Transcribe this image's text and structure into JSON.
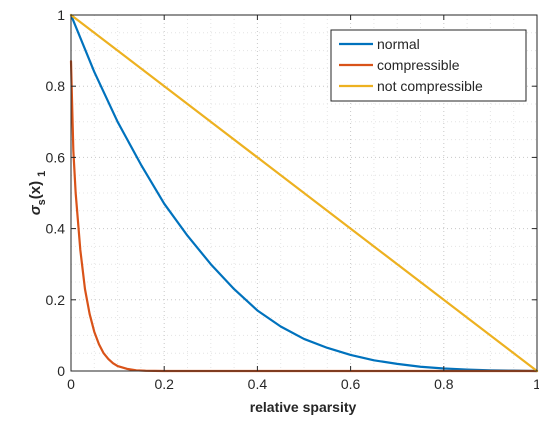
{
  "chart_data": {
    "type": "line",
    "title": "",
    "xlabel": "relative sparsity",
    "ylabel": {
      "main": "σ",
      "sub1": "s",
      "mid": "(x)",
      "sub2": "1"
    },
    "xlim": [
      0,
      1
    ],
    "ylim": [
      0,
      1
    ],
    "x_ticks": [
      0,
      0.2,
      0.4,
      0.6,
      0.8,
      1
    ],
    "x_tick_labels": [
      "0",
      "0.2",
      "0.4",
      "0.6",
      "0.8",
      "1"
    ],
    "y_ticks": [
      0,
      0.2,
      0.4,
      0.6,
      0.8,
      1
    ],
    "y_tick_labels": [
      "0",
      "0.2",
      "0.4",
      "0.6",
      "0.8",
      "1"
    ],
    "grid": "dotted",
    "legend_position": "top-right",
    "series": [
      {
        "name": "normal",
        "color": "#0072BD",
        "x": [
          0,
          0.05,
          0.1,
          0.15,
          0.2,
          0.25,
          0.3,
          0.35,
          0.4,
          0.45,
          0.5,
          0.55,
          0.6,
          0.65,
          0.7,
          0.75,
          0.8,
          0.85,
          0.9,
          0.95,
          1
        ],
        "y": [
          1,
          0.84,
          0.7,
          0.58,
          0.47,
          0.38,
          0.3,
          0.23,
          0.17,
          0.125,
          0.09,
          0.065,
          0.045,
          0.03,
          0.02,
          0.012,
          0.007,
          0.004,
          0.002,
          0.001,
          0
        ]
      },
      {
        "name": "compressible",
        "color": "#D95319",
        "x": [
          0,
          0.005,
          0.01,
          0.02,
          0.03,
          0.04,
          0.05,
          0.06,
          0.07,
          0.08,
          0.09,
          0.1,
          0.12,
          0.14,
          0.16,
          0.2,
          0.3,
          0.5,
          0.7,
          1
        ],
        "y": [
          0.87,
          0.62,
          0.5,
          0.34,
          0.23,
          0.16,
          0.11,
          0.075,
          0.05,
          0.034,
          0.022,
          0.014,
          0.006,
          0.002,
          0.0008,
          0,
          0,
          0,
          0,
          0
        ]
      },
      {
        "name": "not compressible",
        "color": "#EDB120",
        "x": [
          0,
          1
        ],
        "y": [
          1,
          0
        ]
      }
    ]
  }
}
